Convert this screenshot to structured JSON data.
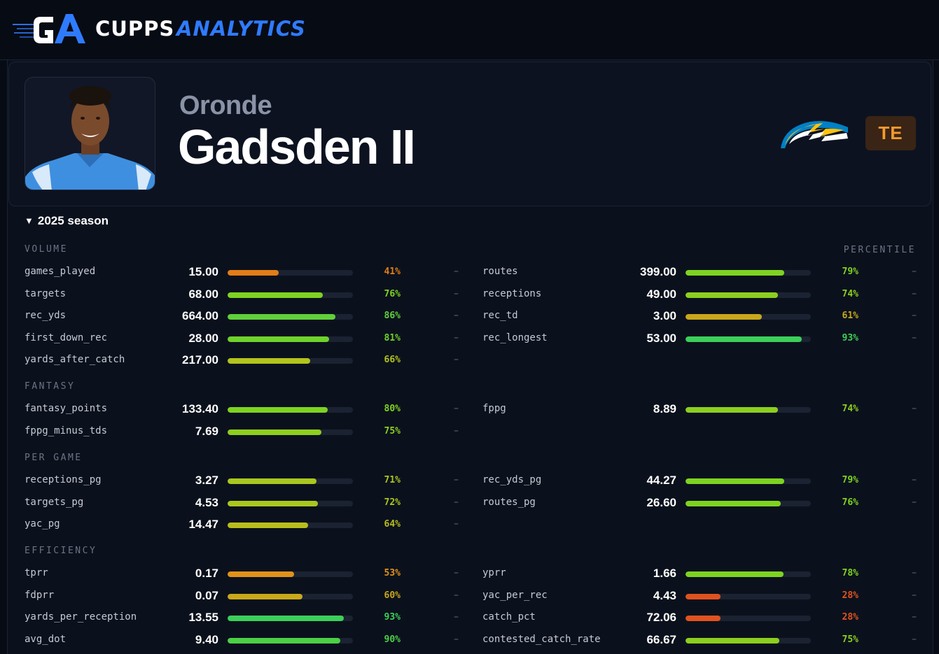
{
  "brand": {
    "name_a": "CUPPS",
    "name_b": "ANALYTICS",
    "accent": "#2f7bff"
  },
  "player": {
    "first_name": "Oronde",
    "last_name": "Gadsden II",
    "position": "TE",
    "team_logo_icon": "lightning-bolt-icon",
    "team_colors": {
      "primary": "#0080c6",
      "secondary": "#ffc20e"
    }
  },
  "season": {
    "label": "2025 season",
    "expanded": true
  },
  "percentile_header": "PERCENTILE",
  "percentile_colors": {
    "low": "#e0521f",
    "mid_low": "#e27d18",
    "mid": "#c9a81a",
    "mid_high": "#a9c71f",
    "high": "#7ed321",
    "top": "#3ccf5a"
  },
  "sections": [
    {
      "label": "VOLUME",
      "left": [
        {
          "name": "games_played",
          "value": "15.00",
          "percentile": 41,
          "pct_label": "41%",
          "color": "#e27d18",
          "extra": "–"
        },
        {
          "name": "targets",
          "value": "68.00",
          "percentile": 76,
          "pct_label": "76%",
          "color": "#7ed321",
          "extra": "–"
        },
        {
          "name": "rec_yds",
          "value": "664.00",
          "percentile": 86,
          "pct_label": "86%",
          "color": "#5fd13a",
          "extra": "–"
        },
        {
          "name": "first_down_rec",
          "value": "28.00",
          "percentile": 81,
          "pct_label": "81%",
          "color": "#6fd22c",
          "extra": "–"
        },
        {
          "name": "yards_after_catch",
          "value": "217.00",
          "percentile": 66,
          "pct_label": "66%",
          "color": "#b3c41d",
          "extra": "–"
        }
      ],
      "right": [
        {
          "name": "routes",
          "value": "399.00",
          "percentile": 79,
          "pct_label": "79%",
          "color": "#7ed321",
          "extra": "–"
        },
        {
          "name": "receptions",
          "value": "49.00",
          "percentile": 74,
          "pct_label": "74%",
          "color": "#8ccf1f",
          "extra": "–"
        },
        {
          "name": "rec_td",
          "value": "3.00",
          "percentile": 61,
          "pct_label": "61%",
          "color": "#c9a81a",
          "extra": "–"
        },
        {
          "name": "rec_longest",
          "value": "53.00",
          "percentile": 93,
          "pct_label": "93%",
          "color": "#3ccf5a",
          "extra": "–"
        }
      ]
    },
    {
      "label": "FANTASY",
      "left": [
        {
          "name": "fantasy_points",
          "value": "133.40",
          "percentile": 80,
          "pct_label": "80%",
          "color": "#7ed321",
          "extra": "–"
        },
        {
          "name": "fppg_minus_tds",
          "value": "7.69",
          "percentile": 75,
          "pct_label": "75%",
          "color": "#8ccf1f",
          "extra": "–"
        }
      ],
      "right": [
        {
          "name": "fppg",
          "value": "8.89",
          "percentile": 74,
          "pct_label": "74%",
          "color": "#8ccf1f",
          "extra": "–"
        }
      ]
    },
    {
      "label": "PER GAME",
      "left": [
        {
          "name": "receptions_pg",
          "value": "3.27",
          "percentile": 71,
          "pct_label": "71%",
          "color": "#a9c71f",
          "extra": "–"
        },
        {
          "name": "targets_pg",
          "value": "4.53",
          "percentile": 72,
          "pct_label": "72%",
          "color": "#a9c71f",
          "extra": "–"
        },
        {
          "name": "yac_pg",
          "value": "14.47",
          "percentile": 64,
          "pct_label": "64%",
          "color": "#b9bd1c",
          "extra": "–"
        }
      ],
      "right": [
        {
          "name": "rec_yds_pg",
          "value": "44.27",
          "percentile": 79,
          "pct_label": "79%",
          "color": "#7ed321",
          "extra": "–"
        },
        {
          "name": "routes_pg",
          "value": "26.60",
          "percentile": 76,
          "pct_label": "76%",
          "color": "#7ed321",
          "extra": "–"
        }
      ]
    },
    {
      "label": "EFFICIENCY",
      "left": [
        {
          "name": "tprr",
          "value": "0.17",
          "percentile": 53,
          "pct_label": "53%",
          "color": "#e0921a",
          "extra": "–"
        },
        {
          "name": "fdprr",
          "value": "0.07",
          "percentile": 60,
          "pct_label": "60%",
          "color": "#c9a81a",
          "extra": "–"
        },
        {
          "name": "yards_per_reception",
          "value": "13.55",
          "percentile": 93,
          "pct_label": "93%",
          "color": "#3ccf5a",
          "extra": "–"
        },
        {
          "name": "avg_dot",
          "value": "9.40",
          "percentile": 90,
          "pct_label": "90%",
          "color": "#4bd046",
          "extra": "–"
        }
      ],
      "right": [
        {
          "name": "yprr",
          "value": "1.66",
          "percentile": 78,
          "pct_label": "78%",
          "color": "#7ed321",
          "extra": "–"
        },
        {
          "name": "yac_per_rec",
          "value": "4.43",
          "percentile": 28,
          "pct_label": "28%",
          "color": "#e0521f",
          "extra": "–"
        },
        {
          "name": "catch_pct",
          "value": "72.06",
          "percentile": 28,
          "pct_label": "28%",
          "color": "#e0521f",
          "extra": "–"
        },
        {
          "name": "contested_catch_rate",
          "value": "66.67",
          "percentile": 75,
          "pct_label": "75%",
          "color": "#8ccf1f",
          "extra": "–"
        }
      ]
    }
  ]
}
